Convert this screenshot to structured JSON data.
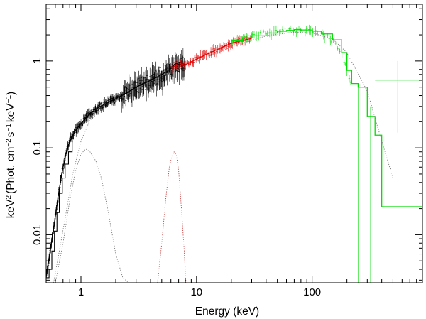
{
  "chart_data": {
    "type": "line",
    "title": "",
    "xlabel": "Energy (keV)",
    "ylabel_main": "keV",
    "ylabel_unit": "(Phot. cm",
    "ylabel_mid": "s",
    "ylabel_tail": "keV",
    "ylabel_exponents": [
      "2",
      "−2",
      "−1",
      "−1"
    ],
    "ylabel_close": ")",
    "x_scale": "log",
    "y_scale": "log",
    "xlim": [
      0.5,
      900
    ],
    "ylim": [
      0.0028,
      4.5
    ],
    "x_ticks": [
      {
        "value": 1,
        "label": "1"
      },
      {
        "value": 10,
        "label": "10"
      },
      {
        "value": 100,
        "label": "100"
      }
    ],
    "y_ticks": [
      {
        "value": 0.01,
        "label": "0.01"
      },
      {
        "value": 0.1,
        "label": "0.1"
      },
      {
        "value": 1,
        "label": "1"
      }
    ],
    "colors": {
      "low_energy": "#000000",
      "mid_energy": "#e00000",
      "high_energy": "#00dd00",
      "components": "#777777",
      "gaussian": "#c04040"
    },
    "series": [
      {
        "name": "low-energy model",
        "color": "#000000",
        "style": "solid",
        "x": [
          0.5,
          0.52,
          0.55,
          0.58,
          0.6,
          0.62,
          0.65,
          0.7,
          0.75,
          0.8,
          0.9,
          1.0,
          1.1,
          1.2,
          1.4,
          1.7,
          2.0,
          2.5,
          3.0,
          4.0,
          5.0,
          5.5,
          6.0,
          6.3,
          6.6,
          7.0,
          7.5,
          8.0
        ],
        "y": [
          0.0032,
          0.0045,
          0.0075,
          0.012,
          0.016,
          0.022,
          0.034,
          0.06,
          0.09,
          0.12,
          0.16,
          0.19,
          0.22,
          0.25,
          0.29,
          0.33,
          0.37,
          0.43,
          0.5,
          0.6,
          0.7,
          0.75,
          0.82,
          0.88,
          0.94,
          0.92,
          0.9,
          0.92
        ]
      },
      {
        "name": "mid-energy model",
        "color": "#e00000",
        "style": "solid",
        "x": [
          6,
          7,
          8,
          9,
          10,
          12,
          15,
          20,
          25,
          30
        ],
        "y": [
          0.83,
          0.9,
          0.91,
          0.98,
          1.05,
          1.18,
          1.35,
          1.6,
          1.72,
          1.82
        ]
      },
      {
        "name": "high-energy model",
        "color": "#00dd00",
        "style": "step",
        "x": [
          20,
          25,
          30,
          40,
          50,
          60,
          70,
          80,
          100,
          120,
          150,
          180,
          200,
          220,
          250,
          300,
          350,
          400,
          500,
          600,
          700,
          900
        ],
        "y": [
          1.7,
          1.85,
          1.95,
          2.1,
          2.2,
          2.25,
          2.3,
          2.28,
          2.2,
          2.05,
          1.75,
          1.25,
          0.78,
          0.55,
          0.5,
          0.23,
          0.14,
          0.021,
          0.021,
          0.021,
          0.021,
          0.021
        ]
      },
      {
        "name": "continuum component",
        "color": "#777777",
        "style": "dotted",
        "x": [
          0.58,
          0.65,
          0.75,
          0.85,
          1.0,
          1.2,
          1.5,
          2.0,
          3.0,
          4.0,
          6.0,
          8.0,
          10,
          20,
          40,
          70,
          100,
          150,
          200,
          300,
          400,
          500
        ],
        "y": [
          0.0028,
          0.0065,
          0.019,
          0.05,
          0.12,
          0.21,
          0.27,
          0.35,
          0.48,
          0.58,
          0.75,
          0.88,
          0.98,
          1.45,
          1.95,
          2.15,
          2.1,
          1.8,
          1.25,
          0.45,
          0.12,
          0.045
        ]
      },
      {
        "name": "low-energy line component",
        "color": "#777777",
        "style": "dotted",
        "x": [
          0.6,
          0.7,
          0.8,
          0.9,
          1.0,
          1.1,
          1.2,
          1.35,
          1.5,
          1.7,
          2.0,
          2.3,
          2.6
        ],
        "y": [
          0.0028,
          0.008,
          0.025,
          0.055,
          0.085,
          0.097,
          0.09,
          0.07,
          0.045,
          0.02,
          0.006,
          0.0032,
          0.0028
        ]
      },
      {
        "name": "iron line component",
        "color": "#c04040",
        "style": "dotted",
        "x": [
          4.6,
          5.0,
          5.4,
          5.8,
          6.1,
          6.4,
          6.7,
          7.0,
          7.4,
          7.8,
          8.1
        ],
        "y": [
          0.0028,
          0.008,
          0.025,
          0.058,
          0.08,
          0.09,
          0.082,
          0.055,
          0.02,
          0.007,
          0.0028
        ]
      }
    ],
    "data_points": [
      {
        "name": "low-energy data",
        "color": "#000000",
        "x_range": [
          0.5,
          8.0
        ],
        "count": 320
      },
      {
        "name": "mid-energy data",
        "color": "#e00000",
        "x_range": [
          6.0,
          30
        ],
        "count": 90
      },
      {
        "name": "high-energy data",
        "color": "#00dd00",
        "x_range": [
          20,
          220
        ],
        "count": 70
      }
    ],
    "outliers": [
      {
        "x": 250,
        "y": 0.0028,
        "y_hi": 0.5,
        "color": "#00dd00"
      },
      {
        "x": 280,
        "y": 0.0028,
        "y_hi": 0.22,
        "color": "#00dd00"
      },
      {
        "x": 320,
        "y": 0.0028,
        "y_hi": 0.3,
        "color": "#00dd00"
      },
      {
        "x": 550,
        "y": 0.6,
        "x_lo": 350,
        "x_hi": 850,
        "y_lo": 0.15,
        "y_hi": 1.0,
        "color": "#00dd00"
      },
      {
        "x": 260,
        "y": 0.32,
        "x_lo": 200,
        "x_hi": 330,
        "color": "#00dd00"
      }
    ],
    "grid": false,
    "legend": "none"
  }
}
